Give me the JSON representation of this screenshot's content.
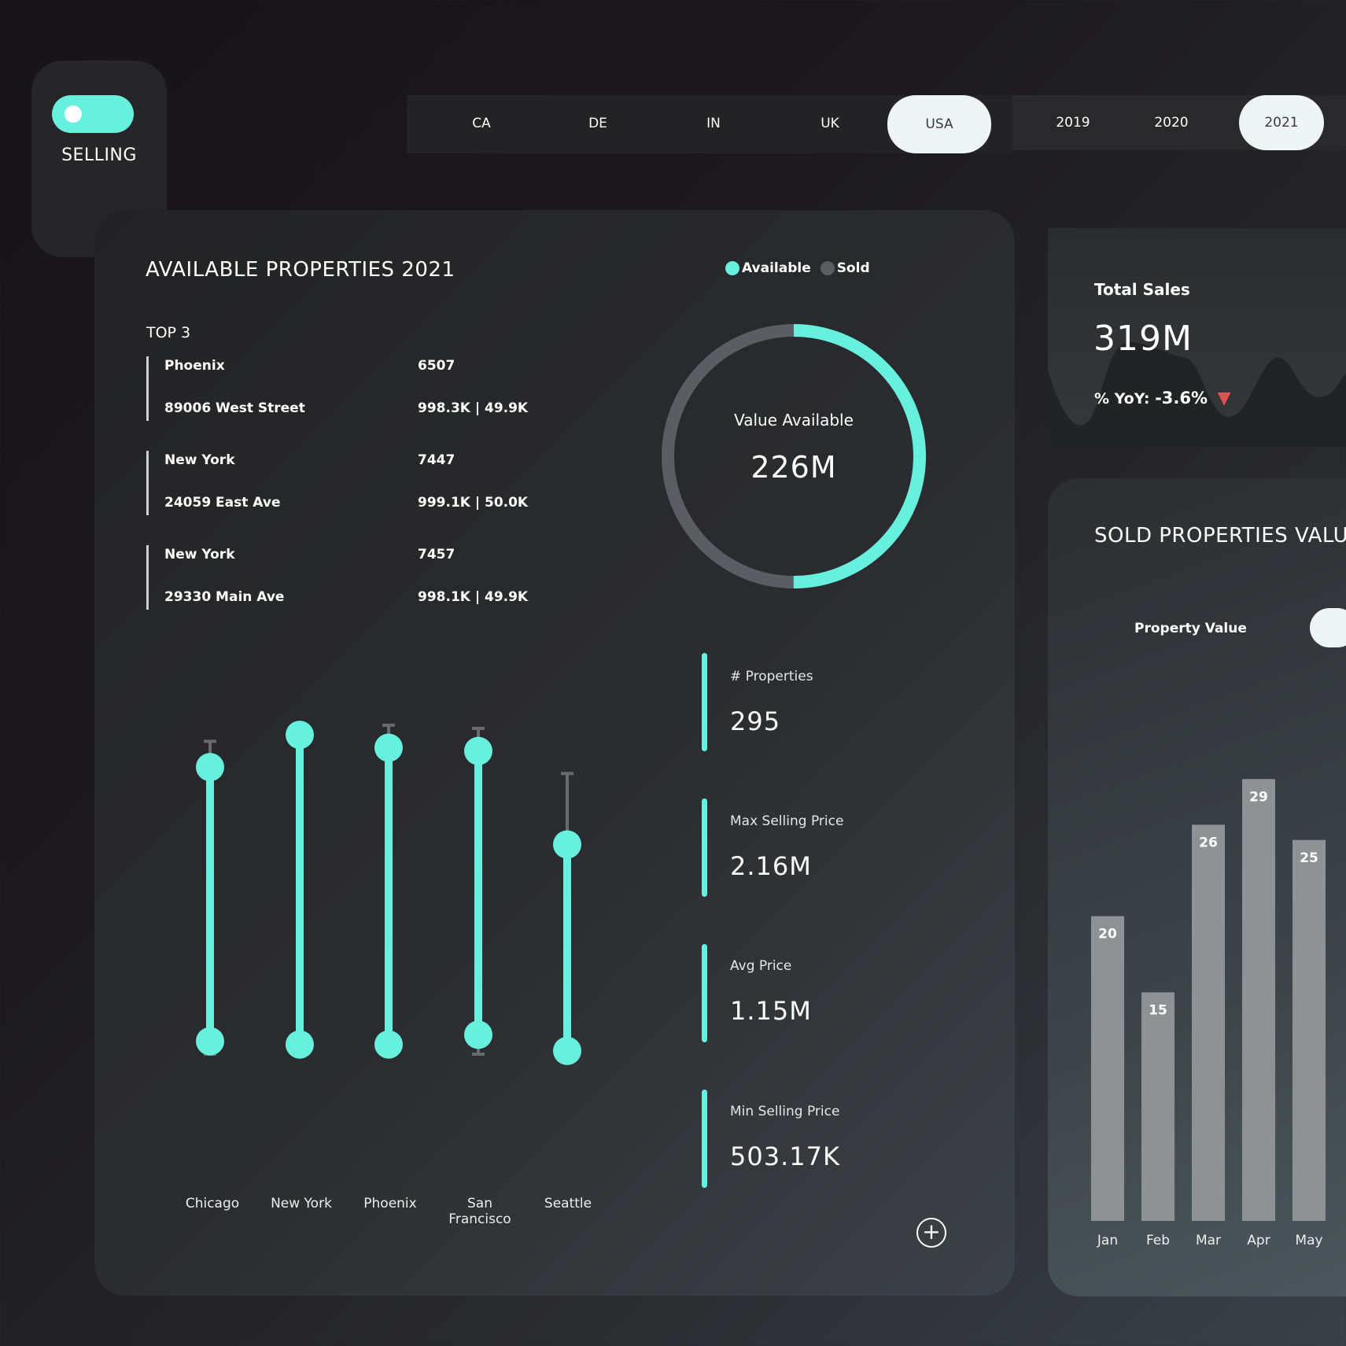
{
  "selling": {
    "label": "SELLING",
    "on": true
  },
  "countries": [
    "CA",
    "DE",
    "IN",
    "UK",
    "USA"
  ],
  "active_country": "USA",
  "years": [
    "2019",
    "2020",
    "2021"
  ],
  "active_year": "2021",
  "main": {
    "title": "AVAILABLE PROPERTIES 2021",
    "top3_label": "TOP 3",
    "top3": [
      {
        "city": "Phoenix",
        "count": "6507",
        "address": "89006 West Street",
        "values": "998.3K | 49.9K"
      },
      {
        "city": "New York",
        "count": "7447",
        "address": "24059 East Ave",
        "values": "999.1K | 50.0K"
      },
      {
        "city": "New York",
        "count": "7457",
        "address": "29330 Main Ave",
        "values": "998.1K | 49.9K"
      }
    ],
    "legend": {
      "available": "Available",
      "sold": "Sold"
    },
    "donut": {
      "label": "Value Available",
      "value": "226M",
      "available_fraction": 0.5
    },
    "kpis": [
      {
        "label": "# Properties",
        "value": "295"
      },
      {
        "label": "Max Selling Price",
        "value": "2.16M"
      },
      {
        "label": "Avg Price",
        "value": "1.15M"
      },
      {
        "label": "Min Selling Price",
        "value": "503.17K"
      }
    ],
    "cities": [
      "Chicago",
      "New York",
      "Phoenix",
      "San Francisco",
      "Seattle"
    ]
  },
  "sales": {
    "title": "Total Sales",
    "value": "319M",
    "yoy_label": "% YoY:",
    "yoy_value": "-3.6%"
  },
  "sold": {
    "title": "SOLD PROPERTIES VALUE",
    "filter_label": "Property Value"
  },
  "colors": {
    "accent": "#67f0de",
    "sold": "#5c5d62",
    "down": "#e05252",
    "bar": "#8f9294"
  },
  "chart_data": [
    {
      "type": "bar",
      "categories": [
        "Jan",
        "Feb",
        "Mar",
        "Apr",
        "May"
      ],
      "values": [
        20,
        15,
        26,
        29,
        25
      ]
    },
    {
      "type": "range",
      "categories": [
        "Chicago",
        "New York",
        "Phoenix",
        "San Francisco",
        "Seattle"
      ],
      "series": [
        {
          "values": [
            [
              0.04,
              0.89
            ],
            [
              0.03,
              0.99
            ],
            [
              0.03,
              0.95
            ],
            [
              0.06,
              0.94
            ],
            [
              0.01,
              0.65
            ]
          ]
        }
      ],
      "whiskers": [
        [
          0.0,
          0.97
        ],
        [
          0.0,
          1.02
        ],
        [
          0.0,
          1.02
        ],
        [
          0.0,
          1.01
        ],
        [
          0.0,
          0.87
        ]
      ]
    }
  ]
}
